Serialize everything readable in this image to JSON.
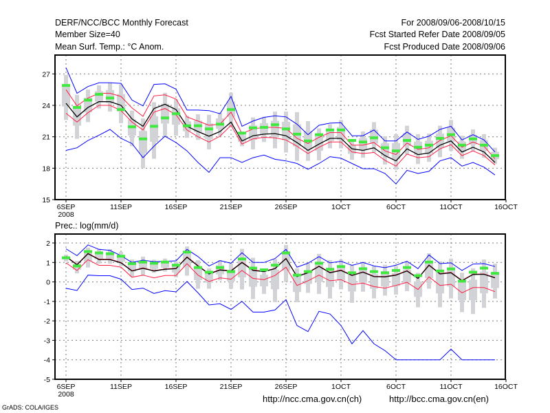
{
  "header": {
    "title": "DERF/NCC/BCC Monthly Forecast",
    "member_size": "Member Size=40",
    "variable": "Mean Surf. Temp.: °C Anom.",
    "period": "For 2008/09/06-2008/10/15",
    "started": "Fcst Started Refer Date 2008/09/05",
    "produced": "Fcst Produced Date 2008/09/06"
  },
  "footer": {
    "url_ch": "http://ncc.cma.gov.cn(ch)",
    "url_en": "http://bcc.cma.gov.cn(en)",
    "credit": "GrADS: COLA/IGES"
  },
  "colors": {
    "extreme": "#0000ff",
    "spread": "#ff1a40",
    "mean": "#000000",
    "obs": "#40e840",
    "box": "#d2d3d7"
  },
  "chart_data": [
    {
      "type": "line",
      "title": "Mean Surf. Temp.: °C Anom.",
      "xlabel": "",
      "ylabel": "",
      "x_tick_labels": [
        "6SEP",
        "11SEP",
        "16SEP",
        "21SEP",
        "26SEP",
        "1OCT",
        "6OCT",
        "11OCT",
        "16OCT"
      ],
      "x_sub_label": "2008",
      "y_ticks": [
        27,
        24,
        21,
        18,
        15
      ],
      "ylim": [
        15,
        28.8
      ],
      "grid": true,
      "start_date": "2008-09-06",
      "n_days": 40,
      "series": [
        {
          "name": "max",
          "color": "#0000ff",
          "values": [
            27.6,
            25.15,
            25.8,
            26.15,
            26.15,
            26.1,
            24.5,
            23.95,
            26.0,
            26.05,
            25.55,
            23.55,
            23.55,
            23.5,
            23.2,
            24.85,
            22.0,
            22.5,
            22.85,
            23.0,
            22.9,
            22.2,
            21.2,
            22.1,
            22.3,
            22.35,
            21.1,
            21.1,
            21.65,
            20.6,
            20.6,
            21.45,
            20.75,
            21.05,
            21.7,
            22.0,
            20.7,
            21.2,
            20.7,
            19.55
          ]
        },
        {
          "name": "upper",
          "color": "#ff1a40",
          "values": [
            25.5,
            23.95,
            24.7,
            25.15,
            25.15,
            24.85,
            23.75,
            22.95,
            24.9,
            25.0,
            24.6,
            22.9,
            22.5,
            22.1,
            22.2,
            23.35,
            21.3,
            21.75,
            21.9,
            21.9,
            21.8,
            20.85,
            20.35,
            20.95,
            21.4,
            21.4,
            20.2,
            20.2,
            20.45,
            19.65,
            19.3,
            20.4,
            19.8,
            19.95,
            20.65,
            21.1,
            20.0,
            20.5,
            20.1,
            18.9
          ]
        },
        {
          "name": "mean",
          "color": "#000000",
          "values": [
            24.2,
            22.9,
            23.8,
            24.35,
            24.35,
            24.0,
            22.7,
            22.0,
            23.7,
            24.1,
            23.6,
            22.0,
            21.5,
            21.05,
            21.5,
            22.4,
            20.6,
            21.1,
            21.25,
            21.3,
            21.1,
            20.45,
            19.7,
            20.3,
            20.85,
            20.85,
            19.85,
            19.7,
            19.95,
            19.2,
            18.7,
            19.85,
            19.3,
            19.45,
            20.2,
            20.6,
            19.55,
            20.0,
            19.55,
            18.55
          ]
        },
        {
          "name": "lower",
          "color": "#ff1a40",
          "values": [
            23.25,
            22.4,
            23.3,
            24.0,
            24.0,
            23.5,
            22.4,
            21.65,
            23.35,
            23.7,
            23.1,
            21.65,
            21.0,
            20.5,
            21.05,
            22.1,
            20.3,
            20.8,
            20.95,
            20.9,
            20.7,
            20.1,
            19.4,
            20.0,
            20.5,
            20.5,
            19.55,
            19.4,
            19.5,
            18.75,
            18.2,
            19.35,
            19.0,
            19.1,
            19.85,
            20.25,
            19.2,
            19.65,
            19.2,
            18.3
          ]
        },
        {
          "name": "min",
          "color": "#0000ff",
          "values": [
            19.7,
            19.95,
            20.65,
            21.15,
            21.7,
            20.85,
            20.35,
            19.0,
            20.1,
            21.05,
            20.45,
            19.65,
            18.55,
            17.6,
            19.0,
            19.0,
            18.55,
            19.0,
            19.25,
            18.85,
            18.7,
            18.45,
            17.9,
            18.45,
            19.1,
            18.95,
            18.45,
            17.95,
            17.95,
            17.5,
            16.5,
            17.8,
            17.5,
            17.7,
            18.7,
            19.0,
            18.2,
            18.55,
            18.1,
            17.35
          ]
        }
      ],
      "markers": [
        25.9,
        23.8,
        24.5,
        25.05,
        24.7,
        23.6,
        21.95,
        20.8,
        22.0,
        22.8,
        23.2,
        22.05,
        22.05,
        21.75,
        22.2,
        23.6,
        21.35,
        21.85,
        21.9,
        22.15,
        21.75,
        21.25,
        20.6,
        21.2,
        21.65,
        21.65,
        20.65,
        20.5,
        20.9,
        19.95,
        19.65,
        20.65,
        20.0,
        20.2,
        20.85,
        21.2,
        20.2,
        20.8,
        20.2,
        19.2
      ],
      "box_hi": [
        26.9,
        25.0,
        25.5,
        25.9,
        26.15,
        26.0,
        23.5,
        22.75,
        24.3,
        25.2,
        24.6,
        23.0,
        23.15,
        23.1,
        23.3,
        25.2,
        21.5,
        22.85,
        22.9,
        23.4,
        23.4,
        23.35,
        22.5,
        21.8,
        22.2,
        22.6,
        20.7,
        21.5,
        22.4,
        21.05,
        21.25,
        22.05,
        21.25,
        21.3,
        22.05,
        22.6,
        21.1,
        21.7,
        21.25,
        19.95
      ],
      "box_lo": [
        22.6,
        20.8,
        22.4,
        23.7,
        23.4,
        22.3,
        20.1,
        18.0,
        18.9,
        21.0,
        21.1,
        20.9,
        20.7,
        19.8,
        21.1,
        21.9,
        20.1,
        19.8,
        20.5,
        19.9,
        19.5,
        18.7,
        18.7,
        18.75,
        19.9,
        19.9,
        18.8,
        19.0,
        19.5,
        18.35,
        17.85,
        19.3,
        18.4,
        18.6,
        19.05,
        19.65,
        18.9,
        19.65,
        19.0,
        18.4
      ]
    },
    {
      "type": "line",
      "title": "Prec.: log(mm/d)",
      "xlabel": "",
      "ylabel": "",
      "x_tick_labels": [
        "6SEP",
        "11SEP",
        "16SEP",
        "21SEP",
        "26SEP",
        "1OCT",
        "6OCT",
        "11OCT",
        "16OCT"
      ],
      "x_sub_label": "2008",
      "y_ticks": [
        2,
        1,
        0,
        -1,
        -2,
        -3,
        -4,
        -5
      ],
      "ylim": [
        -5,
        2.46
      ],
      "grid": true,
      "start_date": "2008-09-06",
      "n_days": 40,
      "series": [
        {
          "name": "max",
          "color": "#0000ff",
          "values": [
            1.7,
            1.35,
            1.9,
            1.67,
            1.62,
            1.35,
            1.0,
            1.12,
            1.04,
            1.06,
            1.08,
            1.67,
            1.3,
            0.82,
            1.09,
            0.96,
            1.5,
            1.0,
            1.0,
            1.2,
            1.67,
            0.76,
            0.96,
            1.3,
            0.98,
            1.06,
            0.85,
            1.0,
            0.82,
            0.73,
            0.86,
            1.06,
            0.68,
            1.39,
            0.94,
            0.98,
            0.59,
            0.92,
            0.94,
            0.79
          ]
        },
        {
          "name": "lower",
          "color": "#ff1a40",
          "values": [
            0.98,
            0.59,
            1.14,
            0.85,
            0.85,
            0.76,
            0.24,
            0.35,
            0.21,
            0.33,
            0.33,
            0.94,
            0.35,
            0.02,
            0.21,
            0.14,
            0.59,
            0.18,
            0.12,
            0.33,
            0.76,
            -0.18,
            0.06,
            0.35,
            0.06,
            0.12,
            -0.14,
            -0.06,
            -0.24,
            -0.32,
            -0.18,
            -0.02,
            -0.39,
            0.26,
            -0.18,
            -0.12,
            -0.56,
            -0.29,
            -0.29,
            -0.5
          ]
        },
        {
          "name": "upper",
          "color": "#ff1a40",
          "values": [
            1.32,
            0.9,
            1.47,
            1.17,
            1.17,
            1.0,
            0.58,
            0.72,
            0.58,
            0.67,
            0.7,
            1.29,
            0.84,
            0.43,
            0.63,
            0.58,
            1.02,
            0.61,
            0.55,
            0.7,
            1.22,
            0.29,
            0.49,
            0.82,
            0.49,
            0.61,
            0.35,
            0.52,
            0.29,
            0.28,
            0.37,
            0.58,
            0.2,
            0.88,
            0.43,
            0.49,
            0.08,
            0.4,
            0.41,
            0.23
          ]
        },
        {
          "name": "mean",
          "color": "#000000",
          "values": [
            1.3,
            0.88,
            1.45,
            1.15,
            1.15,
            0.98,
            0.56,
            0.7,
            0.56,
            0.65,
            0.68,
            1.27,
            0.82,
            0.41,
            0.61,
            0.56,
            1.0,
            0.59,
            0.53,
            0.68,
            1.2,
            0.27,
            0.47,
            0.8,
            0.47,
            0.59,
            0.33,
            0.5,
            0.27,
            0.26,
            0.35,
            0.56,
            0.18,
            0.86,
            0.41,
            0.47,
            0.06,
            0.38,
            0.39,
            0.21
          ]
        },
        {
          "name": "min",
          "color": "#0000ff",
          "values": [
            -0.33,
            -0.44,
            0.35,
            0.32,
            0.32,
            0.14,
            -0.39,
            -0.32,
            -0.59,
            -0.45,
            -0.51,
            0.02,
            -0.56,
            -1.18,
            -1.12,
            -1.41,
            -1.0,
            -1.55,
            -1.55,
            -1.44,
            -0.91,
            -2.24,
            -2.55,
            -1.51,
            -1.65,
            -2.24,
            -3.18,
            -2.5,
            -3.18,
            -3.53,
            -4,
            -4,
            -4,
            -4,
            -4,
            -3.45,
            -4,
            -4,
            -4,
            -4
          ]
        }
      ],
      "markers": [
        1.24,
        0.82,
        1.56,
        1.49,
        1.45,
        1.32,
        0.94,
        1.02,
        0.96,
        1.02,
        0.86,
        1.53,
        0.74,
        0.5,
        0.74,
        0.53,
        1.18,
        0.71,
        0.62,
        0.86,
        1.49,
        0.35,
        0.53,
        0.96,
        0.65,
        0.79,
        0.47,
        0.68,
        0.53,
        0.47,
        0.59,
        0.74,
        0.32,
        1.02,
        0.56,
        0.67,
        0.04,
        0.5,
        0.71,
        0.44
      ],
      "box_hi": [
        1.4,
        1.08,
        1.76,
        1.7,
        1.68,
        1.55,
        1.15,
        1.3,
        1.14,
        1.2,
        1.04,
        1.82,
        1.12,
        0.7,
        1.12,
        0.94,
        1.7,
        1.24,
        0.7,
        1.18,
        1.9,
        0.7,
        0.96,
        1.44,
        1.12,
        1.15,
        0.88,
        1.04,
        0.82,
        0.88,
        0.82,
        1.0,
        0.47,
        1.47,
        1.06,
        1.2,
        0.47,
        0.7,
        1.15,
        0.94
      ],
      "box_lo": [
        1.05,
        0.44,
        0.74,
        0.94,
        0.94,
        0.82,
        0.27,
        0.32,
        0.47,
        0.53,
        0.24,
        0.32,
        -0.35,
        -0.35,
        0.08,
        -0.35,
        -0.39,
        -0.88,
        -0.62,
        -1.04,
        0.0,
        -1.04,
        -0.56,
        -0.62,
        -0.85,
        -0.38,
        -1.08,
        -0.5,
        -0.85,
        -0.7,
        -0.65,
        -0.47,
        -1.3,
        -0.35,
        -1.3,
        -0.85,
        -1.55,
        -1.65,
        -1.33,
        -0.85
      ]
    }
  ]
}
